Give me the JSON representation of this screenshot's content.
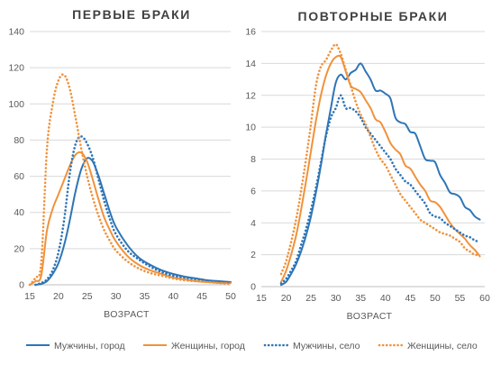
{
  "colors": {
    "blue": "#2E75B6",
    "orange": "#F0923B",
    "grid": "#D9D9D9",
    "axis": "#BFBFBF"
  },
  "legend": {
    "items": [
      {
        "label": "Мужчины, город",
        "color": "#2E75B6",
        "dash": "solid"
      },
      {
        "label": "Женщины, город",
        "color": "#F0923B",
        "dash": "solid"
      },
      {
        "label": "Мужчины, село",
        "color": "#2E75B6",
        "dash": "dotted"
      },
      {
        "label": "Женщины, село",
        "color": "#F0923B",
        "dash": "dotted"
      }
    ]
  },
  "chart_data": [
    {
      "type": "line",
      "title": "ПЕРВЫЕ БРАКИ",
      "xlabel": "ВОЗРАСТ",
      "ylabel": "",
      "xlim": [
        15,
        50
      ],
      "ylim": [
        0,
        140
      ],
      "xticks": [
        15,
        20,
        25,
        30,
        35,
        40,
        45,
        50
      ],
      "yticks": [
        0,
        20,
        40,
        60,
        80,
        100,
        120,
        140
      ],
      "grid": "horizontal",
      "series": [
        {
          "name": "Мужчины, город",
          "color": "#2E75B6",
          "dash": "solid",
          "x": [
            16,
            17,
            18,
            19,
            20,
            21,
            22,
            23,
            24,
            25,
            26,
            27,
            28,
            29,
            30,
            32,
            34,
            36,
            38,
            40,
            42,
            44,
            46,
            48,
            50
          ],
          "y": [
            0,
            0.5,
            2,
            6,
            12,
            22,
            36,
            52,
            64,
            70,
            68,
            60,
            50,
            40,
            32,
            22,
            15,
            11,
            8,
            6,
            4.5,
            3.5,
            2.5,
            2,
            1.5
          ]
        },
        {
          "name": "Женщины, город",
          "color": "#F0923B",
          "dash": "solid",
          "x": [
            15,
            16,
            17,
            18,
            19,
            20,
            21,
            22,
            23,
            24,
            25,
            26,
            27,
            28,
            29,
            30,
            32,
            34,
            36,
            38,
            40,
            42,
            44,
            46,
            48,
            50
          ],
          "y": [
            0,
            2,
            5,
            30,
            42,
            50,
            58,
            66,
            72,
            73,
            68,
            58,
            47,
            37,
            30,
            24,
            16,
            11,
            8,
            6,
            4,
            3,
            2,
            1.5,
            1,
            1
          ]
        },
        {
          "name": "Мужчины, село",
          "color": "#2E75B6",
          "dash": "dotted",
          "x": [
            16,
            17,
            18,
            19,
            20,
            21,
            22,
            23,
            24,
            25,
            26,
            27,
            28,
            29,
            30,
            32,
            34,
            36,
            38,
            40,
            42,
            44,
            46,
            48,
            50
          ],
          "y": [
            0,
            1,
            3,
            8,
            18,
            36,
            62,
            78,
            82,
            78,
            70,
            58,
            46,
            36,
            28,
            19,
            14,
            10,
            7,
            5,
            4,
            3,
            2,
            1.5,
            1
          ]
        },
        {
          "name": "Женщины, село",
          "color": "#F0923B",
          "dash": "dotted",
          "x": [
            15,
            16,
            17,
            18,
            19,
            20,
            21,
            22,
            23,
            24,
            25,
            26,
            27,
            28,
            29,
            30,
            32,
            34,
            36,
            38,
            40,
            42,
            44,
            46,
            48,
            50
          ],
          "y": [
            0,
            4,
            12,
            75,
            100,
            113,
            116,
            108,
            92,
            75,
            60,
            48,
            38,
            30,
            24,
            19,
            13,
            9,
            6.5,
            5,
            3.5,
            2.5,
            2,
            1.5,
            1,
            0.5
          ]
        }
      ]
    },
    {
      "type": "line",
      "title": "ПОВТОРНЫЕ БРАКИ",
      "xlabel": "ВОЗРАСТ",
      "ylabel": "",
      "xlim": [
        15,
        60
      ],
      "ylim": [
        0,
        16
      ],
      "xticks": [
        15,
        20,
        25,
        30,
        35,
        40,
        45,
        50,
        55,
        60
      ],
      "yticks": [
        0,
        2,
        4,
        6,
        8,
        10,
        12,
        14,
        16
      ],
      "grid": "horizontal",
      "series": [
        {
          "name": "Мужчины, город",
          "color": "#2E75B6",
          "dash": "solid",
          "x": [
            19,
            20,
            21,
            22,
            23,
            24,
            25,
            26,
            27,
            28,
            29,
            30,
            31,
            32,
            33,
            34,
            35,
            36,
            37,
            38,
            39,
            40,
            41,
            42,
            43,
            44,
            45,
            46,
            47,
            48,
            49,
            50,
            51,
            52,
            53,
            54,
            55,
            56,
            57,
            58,
            59
          ],
          "y": [
            0.1,
            0.3,
            0.8,
            1.4,
            2.2,
            3.2,
            4.4,
            5.9,
            7.6,
            9.5,
            11.2,
            12.8,
            13.3,
            13.0,
            13.4,
            13.6,
            14.0,
            13.5,
            13.0,
            12.3,
            12.3,
            12.1,
            11.8,
            10.6,
            10.3,
            10.2,
            9.7,
            9.6,
            8.8,
            8.0,
            7.9,
            7.8,
            7.0,
            6.5,
            5.9,
            5.8,
            5.6,
            5.0,
            4.8,
            4.4,
            4.2
          ]
        },
        {
          "name": "Женщины, город",
          "color": "#F0923B",
          "dash": "solid",
          "x": [
            19,
            20,
            21,
            22,
            23,
            24,
            25,
            26,
            27,
            28,
            29,
            30,
            31,
            32,
            33,
            34,
            35,
            36,
            37,
            38,
            39,
            40,
            41,
            42,
            43,
            44,
            45,
            46,
            47,
            48,
            49,
            50,
            51,
            52,
            53,
            54,
            55,
            56,
            57,
            58,
            59
          ],
          "y": [
            0.3,
            1.0,
            2.0,
            3.2,
            4.8,
            6.6,
            8.5,
            10.4,
            12.0,
            13.2,
            14.0,
            14.4,
            14.4,
            13.5,
            12.6,
            12.4,
            12.2,
            11.7,
            11.2,
            10.5,
            10.3,
            9.7,
            9.0,
            8.6,
            8.3,
            7.6,
            7.4,
            6.9,
            6.4,
            6.0,
            5.4,
            5.3,
            5.0,
            4.5,
            4.0,
            3.6,
            3.3,
            3.0,
            2.6,
            2.3,
            1.9
          ]
        },
        {
          "name": "Мужчины, село",
          "color": "#2E75B6",
          "dash": "dotted",
          "x": [
            19,
            20,
            21,
            22,
            23,
            24,
            25,
            26,
            27,
            28,
            29,
            30,
            31,
            32,
            33,
            34,
            35,
            36,
            37,
            38,
            39,
            40,
            41,
            42,
            43,
            44,
            45,
            46,
            47,
            48,
            49,
            50,
            51,
            52,
            53,
            54,
            55,
            56,
            57,
            58,
            59
          ],
          "y": [
            0.2,
            0.5,
            1.0,
            1.6,
            2.6,
            3.6,
            4.8,
            6.2,
            7.8,
            9.4,
            10.6,
            11.2,
            12.0,
            11.2,
            11.2,
            11.0,
            10.6,
            10.0,
            9.6,
            9.2,
            8.8,
            8.4,
            8.0,
            7.4,
            7.0,
            6.6,
            6.4,
            6.0,
            5.6,
            5.2,
            4.6,
            4.4,
            4.3,
            4.0,
            3.8,
            3.6,
            3.4,
            3.2,
            3.1,
            2.9,
            2.8
          ]
        },
        {
          "name": "Женщины, село",
          "color": "#F0923B",
          "dash": "dotted",
          "x": [
            19,
            20,
            21,
            22,
            23,
            24,
            25,
            26,
            27,
            28,
            29,
            30,
            31,
            32,
            33,
            34,
            35,
            36,
            37,
            38,
            39,
            40,
            41,
            42,
            43,
            44,
            45,
            46,
            47,
            48,
            49,
            50,
            51,
            52,
            53,
            54,
            55,
            56,
            57,
            58,
            59
          ],
          "y": [
            0.8,
            1.6,
            2.8,
            4.2,
            6.0,
            8.0,
            10.2,
            12.6,
            13.8,
            14.2,
            14.8,
            15.2,
            14.6,
            13.6,
            12.6,
            11.6,
            10.8,
            10.2,
            9.4,
            8.6,
            8.0,
            7.6,
            7.0,
            6.4,
            5.8,
            5.4,
            5.0,
            4.6,
            4.2,
            4.0,
            3.8,
            3.6,
            3.4,
            3.3,
            3.2,
            3.0,
            2.8,
            2.4,
            2.2,
            2.0,
            2.0
          ]
        }
      ]
    }
  ]
}
